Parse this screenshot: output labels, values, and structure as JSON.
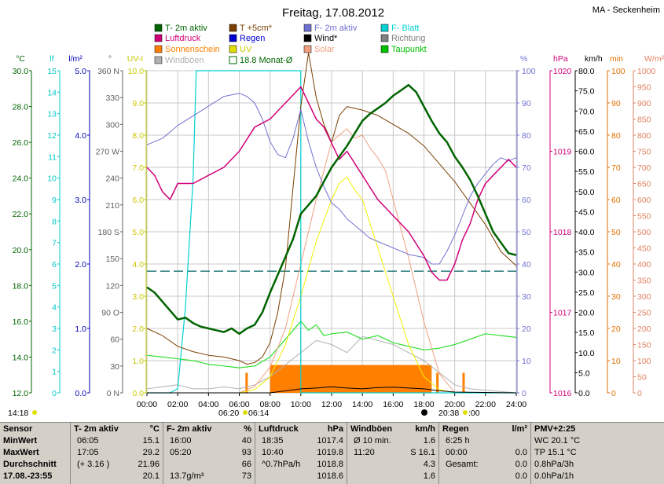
{
  "header": {
    "date": "Freitag, 17.08.2012",
    "location": "MA - Seckenheim"
  },
  "legend": [
    {
      "label": "T- 2m aktiv",
      "color": "#006400"
    },
    {
      "label": "T +5cm*",
      "color": "#7b3f00"
    },
    {
      "label": "F- 2m aktiv",
      "color": "#7070d0"
    },
    {
      "label": "F- Blatt",
      "color": "#00d0d0"
    },
    {
      "label": "Luftdruck",
      "color": "#d0007a"
    },
    {
      "label": "Regen",
      "color": "#0000d0"
    },
    {
      "label": "Wind*",
      "color": "#000000"
    },
    {
      "label": "Richtung",
      "color": "#808080"
    },
    {
      "label": "Sonnenschein",
      "color": "#ff8000"
    },
    {
      "label": "UV",
      "color": "#e0e000"
    },
    {
      "label": "Solar",
      "color": "#f0a080"
    },
    {
      "label": "Taupunkt",
      "color": "#00c000"
    },
    {
      "label": "Windböen",
      "color": "#b0b0b0"
    },
    {
      "label": "18.8 Monat-Ø",
      "color": "#006400"
    }
  ],
  "axes": {
    "temp_unit": "°C",
    "leaf_unit": "lf",
    "rain_unit": "l/m²",
    "dir_unit": "°",
    "uv_unit": "UV-I",
    "hum_unit": "%",
    "press_unit": "hPa",
    "wind_unit": "km/h",
    "sun_unit": "min",
    "solar_unit": "W/m²",
    "temp_ticks": [
      "30.0",
      "28.0",
      "26.0",
      "24.0",
      "22.0",
      "20.0",
      "18.0",
      "16.0",
      "14.0",
      "12.0"
    ],
    "leaf_ticks": [
      "15",
      "14",
      "13",
      "12",
      "11",
      "10",
      "9",
      "8",
      "7",
      "6",
      "5",
      "4",
      "3",
      "2",
      "1",
      "0"
    ],
    "rain_ticks": [
      "5.0",
      "4.0",
      "3.0",
      "2.0",
      "1.0",
      "0.0"
    ],
    "dir_ticks": [
      "360 N",
      "330",
      "300",
      "270 W",
      "240",
      "210",
      "180 S",
      "150",
      "120",
      "90 O",
      "60",
      "30",
      "0 N"
    ],
    "uv_ticks": [
      "10.0",
      "9.0",
      "8.0",
      "7.0",
      "6.0",
      "5.0",
      "4.0",
      "3.0",
      "2.0",
      "1.0",
      "0.0"
    ],
    "hum_ticks": [
      "100",
      "90",
      "80",
      "70",
      "60",
      "50",
      "40",
      "30",
      "20",
      "10",
      "0"
    ],
    "press_ticks": [
      "1020",
      "1019",
      "1018",
      "1017",
      "1016"
    ],
    "wind_ticks": [
      "80.0",
      "75.0",
      "70.0",
      "65.0",
      "60.0",
      "55.0",
      "50.0",
      "45.0",
      "40.0",
      "35.0",
      "30.0",
      "25.0",
      "20.0",
      "15.0",
      "10.0",
      "5.0",
      "0.0"
    ],
    "sun_ticks": [
      "100",
      "90",
      "80",
      "70",
      "60",
      "50",
      "40",
      "30",
      "20",
      "10",
      "0"
    ],
    "solar_ticks": [
      "1000",
      "950",
      "900",
      "850",
      "800",
      "750",
      "700",
      "650",
      "600",
      "550",
      "500",
      "450",
      "400",
      "350",
      "300",
      "250",
      "200",
      "150",
      "100",
      "50",
      "0"
    ],
    "x_ticks": [
      "00:00",
      "02:00",
      "04:00",
      "06:00",
      "08:00",
      "10:00",
      "12:00",
      "14:00",
      "16:00",
      "18:00",
      "20:00",
      "22:00",
      "24:00"
    ]
  },
  "sun_events": {
    "left_time": "14:18",
    "sunrise": "06:20",
    "sunrise2": "06:14",
    "sunset": "20:38",
    "sunset2": ":00"
  },
  "chart_data": {
    "type": "line",
    "title": "Freitag, 17.08.2012",
    "x_range": [
      0,
      24
    ],
    "monthly_avg_temp": 18.8,
    "series": [
      {
        "name": "T- 2m aktiv",
        "axis": "temp",
        "x": [
          0,
          0.5,
          1,
          1.5,
          2,
          2.5,
          3,
          3.5,
          4,
          4.5,
          5,
          5.5,
          6,
          6.5,
          7,
          7.5,
          8,
          8.5,
          9,
          9.5,
          10,
          10.5,
          11,
          11.5,
          12,
          12.5,
          13,
          13.5,
          14,
          14.5,
          15,
          15.5,
          16,
          16.5,
          17,
          17.5,
          18,
          18.5,
          19,
          19.5,
          20,
          20.5,
          21,
          21.5,
          22,
          22.5,
          23,
          23.5,
          24
        ],
        "y": [
          17.9,
          17.6,
          17.1,
          16.6,
          16.1,
          16.2,
          15.9,
          15.7,
          15.6,
          15.5,
          15.4,
          15.6,
          15.3,
          15.6,
          15.8,
          16.5,
          17.6,
          18.6,
          19.6,
          20.6,
          22.0,
          22.5,
          23.0,
          23.8,
          24.6,
          25.2,
          25.8,
          26.5,
          27.2,
          27.6,
          27.9,
          28.2,
          28.6,
          28.9,
          29.2,
          28.8,
          28.0,
          27.2,
          26.5,
          26.0,
          25.2,
          24.6,
          23.9,
          23.0,
          22.0,
          21.0,
          20.4,
          19.8,
          19.7
        ]
      },
      {
        "name": "T +5cm*",
        "axis": "temp",
        "x": [
          0,
          1,
          2,
          3,
          4,
          5,
          6,
          6.5,
          7,
          7.5,
          8,
          8.5,
          9,
          9.5,
          10,
          10.5,
          11,
          11.5,
          12,
          12.5,
          13,
          14,
          15,
          16,
          17,
          18,
          19,
          20,
          21,
          22,
          23,
          24
        ],
        "y": [
          15.6,
          15.2,
          14.6,
          14.3,
          14.1,
          14.0,
          13.8,
          13.6,
          13.7,
          14.0,
          14.8,
          16.5,
          19.0,
          23.5,
          28.0,
          31.0,
          28.5,
          27.0,
          26.0,
          27.5,
          28.0,
          27.8,
          27.5,
          27.0,
          26.5,
          25.8,
          24.8,
          23.8,
          22.6,
          21.4,
          19.9,
          19.1
        ]
      },
      {
        "name": "F- 2m aktiv",
        "axis": "hum",
        "x": [
          0,
          1,
          2,
          3,
          4,
          5,
          6,
          6.5,
          7,
          7.5,
          8,
          8.5,
          9,
          9.5,
          10,
          10.5,
          11,
          11.5,
          12,
          12.5,
          13,
          13.5,
          14,
          14.5,
          15,
          16,
          17,
          18,
          18.5,
          19,
          19.5,
          20,
          20.5,
          21,
          21.5,
          22,
          22.5,
          23,
          23.5,
          24
        ],
        "y": [
          77,
          79,
          83,
          86,
          89,
          92,
          93,
          92,
          90,
          85,
          78,
          74,
          73,
          79,
          88,
          78,
          70,
          64,
          59,
          57,
          54,
          52,
          50,
          48,
          47,
          45,
          43,
          42,
          40,
          40,
          44,
          49,
          55,
          61,
          65,
          68,
          71,
          73,
          72,
          73
        ]
      },
      {
        "name": "Luftdruck",
        "axis": "press",
        "x": [
          0,
          0.5,
          1,
          1.5,
          2,
          3,
          4,
          5,
          6,
          7,
          8,
          9,
          10,
          10.5,
          11,
          11.5,
          12,
          12.5,
          13,
          14,
          15,
          16,
          17,
          18,
          18.5,
          19,
          19.5,
          20,
          20.5,
          21,
          21.5,
          22,
          22.5,
          23,
          23.5,
          24
        ],
        "y": [
          1018.8,
          1018.7,
          1018.5,
          1018.4,
          1018.6,
          1018.6,
          1018.7,
          1018.8,
          1019.0,
          1019.3,
          1019.4,
          1019.6,
          1019.8,
          1019.6,
          1019.4,
          1019.3,
          1019.1,
          1018.9,
          1019.0,
          1018.7,
          1018.4,
          1018.2,
          1018.0,
          1017.7,
          1017.5,
          1017.4,
          1017.4,
          1017.6,
          1017.9,
          1018.1,
          1018.4,
          1018.6,
          1018.7,
          1018.8,
          1018.9,
          1018.8
        ]
      },
      {
        "name": "F- Blatt",
        "axis": "leaf",
        "x": [
          0,
          1.5,
          2,
          2.5,
          3,
          3.2,
          3.5,
          10,
          10,
          24
        ],
        "y": [
          0,
          0,
          0.2,
          4,
          10,
          15,
          15,
          15,
          0,
          0
        ]
      },
      {
        "name": "Taupunkt",
        "axis": "temp",
        "x": [
          0,
          1,
          2,
          3,
          4,
          5,
          6,
          7,
          8,
          9,
          10,
          10.5,
          11,
          11.5,
          12,
          13,
          14,
          15,
          16,
          17,
          18,
          19,
          20,
          21,
          22,
          23,
          24
        ],
        "y": [
          14.1,
          14.0,
          13.9,
          13.8,
          13.6,
          13.5,
          13.4,
          13.5,
          14.0,
          15.0,
          16.0,
          15.5,
          15.8,
          15.2,
          15.3,
          15.4,
          15.0,
          15.2,
          14.8,
          14.6,
          14.4,
          14.5,
          14.7,
          15.0,
          15.3,
          15.2,
          15.1
        ]
      },
      {
        "name": "UV",
        "axis": "uv",
        "x": [
          0,
          6,
          7,
          8,
          9,
          10,
          11,
          12,
          12.5,
          13,
          13.5,
          14,
          15,
          16,
          17,
          18,
          19,
          20,
          24
        ],
        "y": [
          0,
          0,
          0.1,
          0.5,
          1.5,
          3.0,
          4.7,
          6.0,
          6.5,
          6.7,
          6.3,
          6.0,
          4.5,
          3.0,
          1.5,
          0.5,
          0.1,
          0,
          0
        ]
      },
      {
        "name": "Solar",
        "axis": "solar",
        "x": [
          0,
          6,
          7,
          8,
          9,
          10,
          11,
          12,
          12.5,
          13,
          13.5,
          14,
          14.5,
          15,
          15.5,
          16,
          17,
          18,
          19,
          20,
          24
        ],
        "y": [
          0,
          0,
          20,
          80,
          200,
          400,
          600,
          780,
          800,
          820,
          790,
          800,
          760,
          730,
          690,
          600,
          420,
          220,
          60,
          0,
          0
        ]
      },
      {
        "name": "Windböen",
        "axis": "wind",
        "x": [
          0,
          1,
          2,
          3,
          4,
          5,
          6,
          7,
          8,
          9,
          10,
          11,
          12,
          13,
          14,
          15,
          16,
          17,
          18,
          19,
          20,
          21,
          24
        ],
        "y": [
          1,
          1.5,
          2,
          1,
          1,
          1.5,
          1,
          2,
          4,
          7,
          10,
          13,
          12,
          10,
          14,
          13,
          12,
          10,
          8,
          5,
          2,
          1,
          0
        ]
      },
      {
        "name": "Wind*",
        "axis": "wind",
        "x": [
          0,
          8,
          9,
          10,
          11,
          12,
          13,
          14,
          15,
          16,
          17,
          18,
          19,
          20,
          24
        ],
        "y": [
          0,
          0,
          0.5,
          1,
          1.2,
          1.5,
          1.2,
          1,
          1.3,
          1.4,
          1.2,
          1,
          0.5,
          0.2,
          0
        ]
      },
      {
        "name": "Sonnenschein",
        "axis": "sun",
        "type": "area",
        "x": [
          6.3,
          6.5,
          7.5,
          8,
          18.5,
          19,
          20.4,
          20.6
        ],
        "y": [
          0,
          5,
          0,
          5,
          5,
          0,
          4,
          0
        ]
      }
    ]
  },
  "stats": {
    "sensor": {
      "title": "Sensor",
      "rows": [
        "MinWert",
        "MaxWert",
        "Durchschnitt",
        "17.08.-23:55"
      ]
    },
    "temp": {
      "title": "T- 2m aktiv",
      "unit": "°C",
      "rows": [
        [
          "06:05",
          "15.1"
        ],
        [
          "17:05",
          "29.2"
        ],
        [
          "(+ 3.16 )",
          "21.96"
        ],
        [
          "",
          "20.1"
        ]
      ]
    },
    "hum": {
      "title": "F- 2m aktiv",
      "unit": "%",
      "rows": [
        [
          "16:00",
          "40"
        ],
        [
          "05:20",
          "93"
        ],
        [
          "",
          "66"
        ],
        [
          "13.7g/m³",
          "73"
        ]
      ]
    },
    "press": {
      "title": "Luftdruck",
      "unit": "hPa",
      "rows": [
        [
          "18:35",
          "1017.4"
        ],
        [
          "10:40",
          "1019.8"
        ],
        [
          "^0.7hPa/h",
          "1018.8"
        ],
        [
          "",
          "1018.6"
        ]
      ]
    },
    "wind": {
      "title": "Windböen",
      "unit": "km/h",
      "rows": [
        [
          "Ø 10 min.",
          "1.6"
        ],
        [
          "11:20",
          "S 16.1"
        ],
        [
          "",
          "4.3"
        ],
        [
          "",
          "1.6"
        ]
      ]
    },
    "rain": {
      "title": "Regen",
      "unit": "l/m²",
      "rows": [
        [
          "6:25 h",
          ""
        ],
        [
          "00:00",
          "0.0"
        ],
        [
          "Gesamt:",
          "0.0"
        ],
        [
          "",
          "0.0"
        ]
      ]
    },
    "pmv": {
      "title": "PMV+2:25",
      "rows": [
        "WC 20.1 °C",
        "TP 15.1 °C",
        "0.8hPa/3h",
        "0.0hPa/1h"
      ]
    }
  }
}
